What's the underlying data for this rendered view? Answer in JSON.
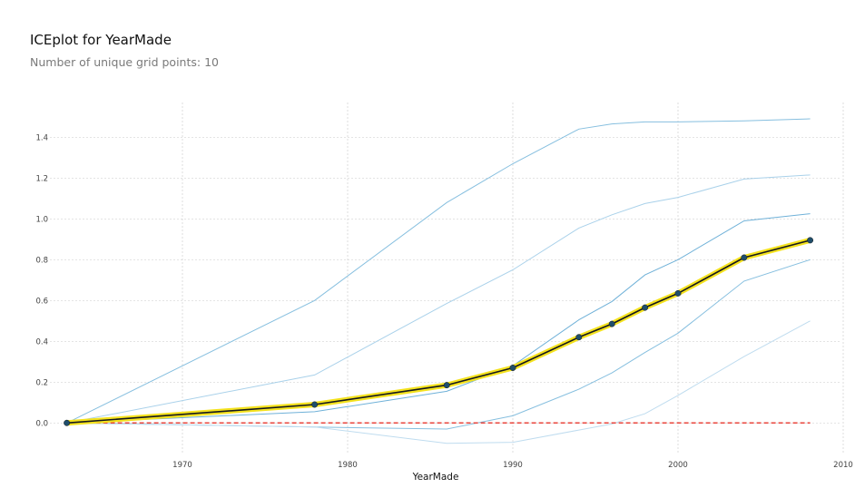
{
  "chart_data": {
    "type": "line",
    "title": "ICEplot for YearMade",
    "subtitle": "Number of unique grid points: 10",
    "xlabel": "YearMade",
    "ylabel": "",
    "xlim": [
      1960,
      2010
    ],
    "ylim": [
      -0.15,
      1.57
    ],
    "x_ticks": [
      1970,
      1980,
      1990,
      2000,
      2010
    ],
    "y_ticks": [
      0.0,
      0.2,
      0.4,
      0.6,
      0.8,
      1.0,
      1.2,
      1.4
    ],
    "grid": true,
    "x": [
      1963,
      1978,
      1986,
      1990,
      1994,
      1996,
      1998,
      2000,
      2004,
      2008
    ],
    "ice_lines": [
      {
        "values": [
          0.0,
          0.6,
          1.08,
          1.27,
          1.44,
          1.465,
          1.475,
          1.475,
          1.48,
          1.49
        ],
        "color": "#86bfdf"
      },
      {
        "values": [
          0.0,
          0.235,
          0.585,
          0.75,
          0.955,
          1.02,
          1.075,
          1.105,
          1.195,
          1.215
        ],
        "color": "#a9d1ea"
      },
      {
        "values": [
          0.0,
          0.055,
          0.155,
          0.28,
          0.505,
          0.595,
          0.725,
          0.8,
          0.99,
          1.025
        ],
        "color": "#6fb1d8"
      },
      {
        "values": [
          0.0,
          -0.02,
          -0.03,
          0.035,
          0.165,
          0.245,
          0.345,
          0.44,
          0.695,
          0.8
        ],
        "color": "#86bfdf"
      },
      {
        "values": [
          0.0,
          -0.02,
          -0.1,
          -0.095,
          -0.035,
          -0.005,
          0.045,
          0.135,
          0.325,
          0.5
        ],
        "color": "#bfdcef"
      }
    ],
    "average": [
      0.0,
      0.09,
      0.185,
      0.27,
      0.42,
      0.485,
      0.565,
      0.635,
      0.81,
      0.895
    ],
    "reference": 0.0,
    "colors": {
      "ice": "#86bfdf",
      "average_line": "#16191d",
      "average_glow": "#f4e21e",
      "average_marker": "#1f4e6b",
      "reference": "#e8453c",
      "grid": "#c9c9c9"
    }
  }
}
